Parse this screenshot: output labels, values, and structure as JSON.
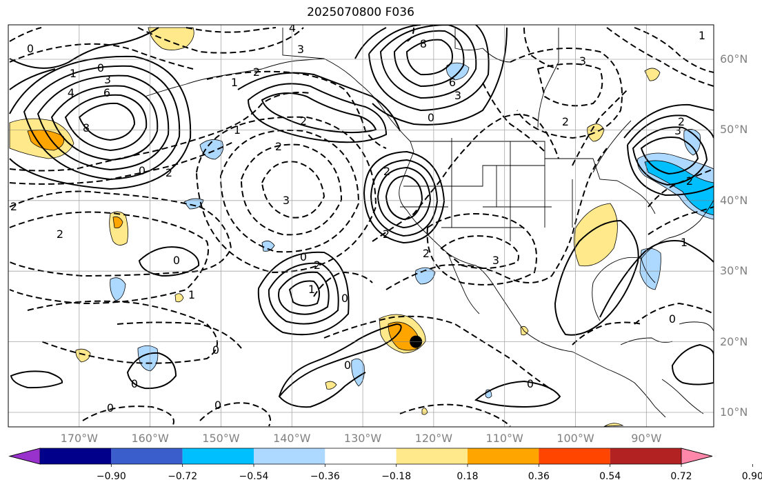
{
  "title": "2025070800 F036",
  "lat_labels": [
    {
      "lat": 60,
      "text": "60°N"
    },
    {
      "lat": 50,
      "text": "50°N"
    },
    {
      "lat": 40,
      "text": "40°N"
    },
    {
      "lat": 30,
      "text": "30°N"
    },
    {
      "lat": 20,
      "text": "20°N"
    },
    {
      "lat": 10,
      "text": "10°N"
    }
  ],
  "lon_labels": [
    {
      "lon": -170,
      "text": "170°W"
    },
    {
      "lon": -160,
      "text": "160°W"
    },
    {
      "lon": -150,
      "text": "150°W"
    },
    {
      "lon": -140,
      "text": "140°W"
    },
    {
      "lon": -130,
      "text": "130°W"
    },
    {
      "lon": -120,
      "text": "120°W"
    },
    {
      "lon": -110,
      "text": "110°W"
    },
    {
      "lon": -100,
      "text": "100°W"
    },
    {
      "lon": -90,
      "text": "90°W"
    }
  ],
  "colorbar": {
    "colors": [
      "#9932cc",
      "#00008b",
      "#3a5fcd",
      "#00bfff",
      "#add8ff",
      "#ffffff",
      "#ffe98a",
      "#ffa500",
      "#ff4500",
      "#b22222",
      "#ff88aa"
    ],
    "tick_labels": [
      "−0.90",
      "−0.72",
      "−0.54",
      "−0.36",
      "−0.18",
      "0.18",
      "0.36",
      "0.54",
      "0.72",
      "0.90"
    ]
  },
  "contour_labels": [
    {
      "text": "4"
    },
    {
      "text": "3"
    },
    {
      "text": "8"
    },
    {
      "text": "6"
    },
    {
      "text": "3"
    },
    {
      "text": "0"
    },
    {
      "text": "1"
    },
    {
      "text": "4"
    },
    {
      "text": "6"
    },
    {
      "text": "8"
    },
    {
      "text": "2"
    },
    {
      "text": "1"
    },
    {
      "text": "2"
    },
    {
      "text": "2"
    },
    {
      "text": "0"
    },
    {
      "text": "1"
    },
    {
      "text": "2"
    },
    {
      "text": "0"
    },
    {
      "text": "2"
    },
    {
      "text": "3"
    },
    {
      "text": "2"
    },
    {
      "text": "3"
    },
    {
      "text": "0"
    },
    {
      "text": "2"
    },
    {
      "text": "1"
    },
    {
      "text": "0"
    },
    {
      "text": "0"
    },
    {
      "text": "2"
    },
    {
      "text": "2"
    },
    {
      "text": "0"
    },
    {
      "text": "1"
    },
    {
      "text": "0"
    },
    {
      "text": "0"
    },
    {
      "text": "0"
    },
    {
      "text": "0"
    },
    {
      "text": "3"
    },
    {
      "text": "2"
    },
    {
      "text": "3"
    },
    {
      "text": "0"
    },
    {
      "text": "1"
    },
    {
      "text": "0"
    },
    {
      "text": "2"
    },
    {
      "text": "0"
    },
    {
      "text": "2"
    },
    {
      "text": "3"
    },
    {
      "text": "2"
    },
    {
      "text": "1"
    }
  ],
  "storm_marker": {
    "lat": 20,
    "lon": -122.5
  }
}
